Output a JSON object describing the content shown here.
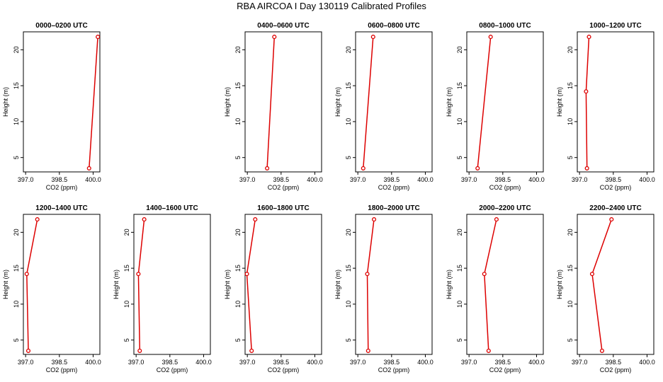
{
  "title": "RBA AIRCOA I  Day 130119  Calibrated Profiles",
  "colors": {
    "series": "#dd0000",
    "axis": "#000000"
  },
  "chart_data": [
    {
      "type": "line",
      "title": "0000–0200 UTC",
      "xlabel": "CO2 (ppm)",
      "ylabel": "Height (m)",
      "xlim": [
        396.9,
        400.3
      ],
      "ylim": [
        3,
        22.5
      ],
      "xticks": [
        "397.0",
        "398.5",
        "400.0"
      ],
      "yticks": [
        "5",
        "10",
        "15",
        "20"
      ],
      "points": [
        {
          "x": 399.82,
          "y": 3.5
        },
        {
          "x": 400.21,
          "y": 21.8
        }
      ]
    },
    {
      "type": "line",
      "title": "",
      "xlabel": "",
      "ylabel": "",
      "empty": true,
      "points": []
    },
    {
      "type": "line",
      "title": "0400–0600 UTC",
      "xlabel": "CO2 (ppm)",
      "ylabel": "Height (m)",
      "xlim": [
        396.9,
        400.3
      ],
      "ylim": [
        3,
        22.5
      ],
      "xticks": [
        "397.0",
        "398.5",
        "400.0"
      ],
      "yticks": [
        "5",
        "10",
        "15",
        "20"
      ],
      "points": [
        {
          "x": 397.88,
          "y": 3.5
        },
        {
          "x": 398.2,
          "y": 21.8
        }
      ]
    },
    {
      "type": "line",
      "title": "0600–0800 UTC",
      "xlabel": "CO2 (ppm)",
      "ylabel": "Height (m)",
      "xlim": [
        396.9,
        400.3
      ],
      "ylim": [
        3,
        22.5
      ],
      "xticks": [
        "397.0",
        "398.5",
        "400.0"
      ],
      "yticks": [
        "5",
        "10",
        "15",
        "20"
      ],
      "points": [
        {
          "x": 397.24,
          "y": 3.5
        },
        {
          "x": 397.68,
          "y": 21.8
        }
      ]
    },
    {
      "type": "line",
      "title": "0800–1000 UTC",
      "xlabel": "CO2 (ppm)",
      "ylabel": "Height (m)",
      "xlim": [
        396.9,
        400.3
      ],
      "ylim": [
        3,
        22.5
      ],
      "xticks": [
        "397.0",
        "398.5",
        "400.0"
      ],
      "yticks": [
        "5",
        "10",
        "15",
        "20"
      ],
      "points": [
        {
          "x": 397.38,
          "y": 3.5
        },
        {
          "x": 397.96,
          "y": 21.8
        }
      ]
    },
    {
      "type": "line",
      "title": "1000–1200 UTC",
      "xlabel": "CO2 (ppm)",
      "ylabel": "Height (m)",
      "xlim": [
        396.9,
        400.3
      ],
      "ylim": [
        3,
        22.5
      ],
      "xticks": [
        "397.0",
        "398.5",
        "400.0"
      ],
      "yticks": [
        "5",
        "10",
        "15",
        "20"
      ],
      "points": [
        {
          "x": 397.33,
          "y": 3.5
        },
        {
          "x": 397.29,
          "y": 14.2
        },
        {
          "x": 397.42,
          "y": 21.8
        }
      ]
    },
    {
      "type": "line",
      "title": "1200–1400 UTC",
      "xlabel": "CO2 (ppm)",
      "ylabel": "Height (m)",
      "xlim": [
        396.9,
        400.3
      ],
      "ylim": [
        3,
        22.5
      ],
      "xticks": [
        "397.0",
        "398.5",
        "400.0"
      ],
      "yticks": [
        "5",
        "10",
        "15",
        "20"
      ],
      "points": [
        {
          "x": 397.12,
          "y": 3.5
        },
        {
          "x": 397.05,
          "y": 14.2
        },
        {
          "x": 397.52,
          "y": 21.8
        }
      ]
    },
    {
      "type": "line",
      "title": "1400–1600 UTC",
      "xlabel": "CO2 (ppm)",
      "ylabel": "Height (m)",
      "xlim": [
        396.9,
        400.3
      ],
      "ylim": [
        3,
        22.5
      ],
      "xticks": [
        "397.0",
        "398.5",
        "400.0"
      ],
      "yticks": [
        "5",
        "10",
        "15",
        "20"
      ],
      "points": [
        {
          "x": 397.16,
          "y": 3.5
        },
        {
          "x": 397.1,
          "y": 14.2
        },
        {
          "x": 397.36,
          "y": 21.8
        }
      ]
    },
    {
      "type": "line",
      "title": "1600–1800 UTC",
      "xlabel": "CO2 (ppm)",
      "ylabel": "Height (m)",
      "xlim": [
        396.9,
        400.3
      ],
      "ylim": [
        3,
        22.5
      ],
      "xticks": [
        "397.0",
        "398.5",
        "400.0"
      ],
      "yticks": [
        "5",
        "10",
        "15",
        "20"
      ],
      "points": [
        {
          "x": 397.19,
          "y": 3.5
        },
        {
          "x": 396.98,
          "y": 14.2
        },
        {
          "x": 397.35,
          "y": 21.8
        }
      ]
    },
    {
      "type": "line",
      "title": "1800–2000 UTC",
      "xlabel": "CO2 (ppm)",
      "ylabel": "Height (m)",
      "xlim": [
        396.9,
        400.3
      ],
      "ylim": [
        3,
        22.5
      ],
      "xticks": [
        "397.0",
        "398.5",
        "400.0"
      ],
      "yticks": [
        "5",
        "10",
        "15",
        "20"
      ],
      "points": [
        {
          "x": 397.46,
          "y": 3.5
        },
        {
          "x": 397.42,
          "y": 14.2
        },
        {
          "x": 397.72,
          "y": 21.8
        }
      ]
    },
    {
      "type": "line",
      "title": "2000–2200 UTC",
      "xlabel": "CO2 (ppm)",
      "ylabel": "Height (m)",
      "xlim": [
        396.9,
        400.3
      ],
      "ylim": [
        3,
        22.5
      ],
      "xticks": [
        "397.0",
        "398.5",
        "400.0"
      ],
      "yticks": [
        "5",
        "10",
        "15",
        "20"
      ],
      "points": [
        {
          "x": 397.87,
          "y": 3.5
        },
        {
          "x": 397.68,
          "y": 14.2
        },
        {
          "x": 398.22,
          "y": 21.8
        }
      ]
    },
    {
      "type": "line",
      "title": "2200–2400 UTC",
      "xlabel": "CO2 (ppm)",
      "ylabel": "Height (m)",
      "xlim": [
        396.9,
        400.3
      ],
      "ylim": [
        3,
        22.5
      ],
      "xticks": [
        "397.0",
        "398.5",
        "400.0"
      ],
      "yticks": [
        "5",
        "10",
        "15",
        "20"
      ],
      "points": [
        {
          "x": 398.0,
          "y": 3.5
        },
        {
          "x": 397.56,
          "y": 14.2
        },
        {
          "x": 398.42,
          "y": 21.8
        }
      ]
    }
  ]
}
